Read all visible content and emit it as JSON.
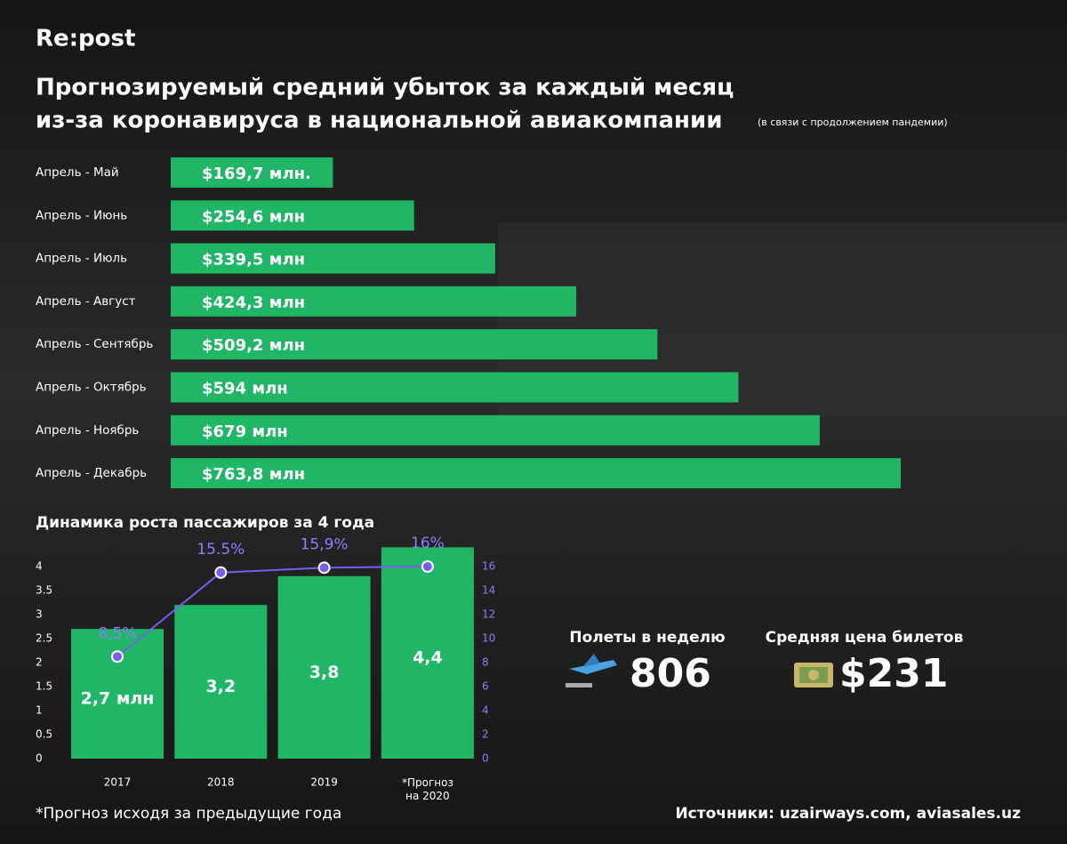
{
  "brand": "Re:post",
  "chart_data": [
    {
      "type": "hbar",
      "title": [
        "Прогнозируемый средний убыток за каждый месяц",
        "из-за коронавируса в национальной авиакомпании"
      ],
      "subtitle": "(в связи с продолжением пандемии)",
      "categories": [
        "Апрель - Май",
        "Апрель - Июнь",
        "Апрель - Июль",
        "Апрель - Август",
        "Апрель - Сентябрь",
        "Апрель - Октябрь",
        "Апрель - Ноябрь",
        "Апрель - Декабрь"
      ],
      "values": [
        169.7,
        254.6,
        339.5,
        424.3,
        509.2,
        594,
        679,
        763.8
      ],
      "value_labels": [
        "$169,7 млн.",
        "$254,6 млн",
        "$339,5 млн",
        "$424,3 млн",
        "$509,2 млн",
        "$594 млн",
        "$679 млн",
        "$763,8 млн"
      ],
      "color": "#1fb765"
    },
    {
      "type": "combo",
      "title": "Динамика роста пассажиров за 4 года",
      "categories": [
        "2017",
        "2018",
        "2019",
        "*Прогноз на 2020"
      ],
      "ylim": [
        0,
        4
      ],
      "yticks": [
        0,
        0.5,
        1,
        1.5,
        2,
        2.5,
        3,
        3.5,
        4
      ],
      "y2lim": [
        0,
        16
      ],
      "y2ticks": [
        0,
        2,
        4,
        6,
        8,
        10,
        12,
        14,
        16
      ],
      "series": [
        {
          "type": "bar",
          "color": "#1fb765",
          "values": [
            2.7,
            3.2,
            3.8,
            4.4
          ],
          "value_labels": [
            "2,7 млн",
            "3,2",
            "3,8",
            "4,4"
          ]
        },
        {
          "type": "line",
          "axis": "y2",
          "color": "#7b5cf0",
          "values": [
            8.5,
            15.5,
            15.9,
            16
          ],
          "value_labels": [
            "8,5%",
            "15.5%",
            "15,9%",
            "16%"
          ]
        }
      ]
    }
  ],
  "stats": [
    {
      "label": "Полеты в неделю",
      "value": "806"
    },
    {
      "label": "Средняя цена билетов",
      "value": "$231"
    }
  ],
  "footnote": "*Прогноз исходя за предыдущие года",
  "sources": "Источники: uzairways.com, aviasales.uz"
}
